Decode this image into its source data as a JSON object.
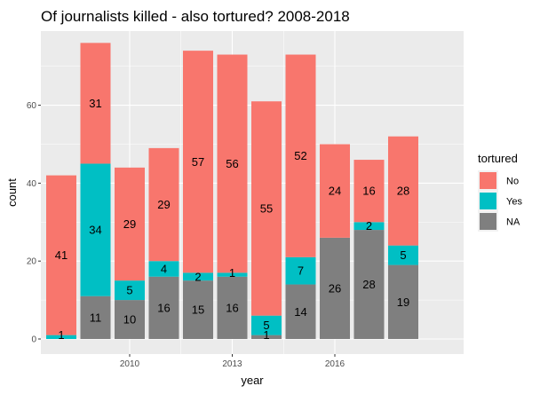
{
  "chart_data": {
    "type": "bar",
    "stacked": true,
    "title": "Of journalists killed - also tortured? 2008-2018",
    "xlabel": "year",
    "ylabel": "count",
    "x": [
      2008,
      2009,
      2010,
      2011,
      2012,
      2013,
      2014,
      2015,
      2016,
      2017,
      2018
    ],
    "x_ticks": [
      2010,
      2013,
      2016
    ],
    "y_ticks": [
      0,
      20,
      40,
      60
    ],
    "ylim": [
      0,
      78
    ],
    "grid": true,
    "legend": {
      "title": "tortured",
      "position": "right"
    },
    "series": [
      {
        "name": "NA",
        "color": "#7f7f7f",
        "values": [
          0,
          11,
          10,
          16,
          15,
          16,
          1,
          14,
          26,
          28,
          19
        ]
      },
      {
        "name": "Yes",
        "color": "#00bfc4",
        "values": [
          1,
          34,
          5,
          4,
          2,
          1,
          5,
          7,
          0,
          2,
          5
        ]
      },
      {
        "name": "No",
        "color": "#f8766d",
        "values": [
          41,
          31,
          29,
          29,
          57,
          56,
          55,
          52,
          24,
          16,
          28
        ]
      }
    ],
    "legend_order": [
      "No",
      "Yes",
      "NA"
    ],
    "panel_background": "#ebebeb",
    "gridline_color": "#ffffff"
  }
}
